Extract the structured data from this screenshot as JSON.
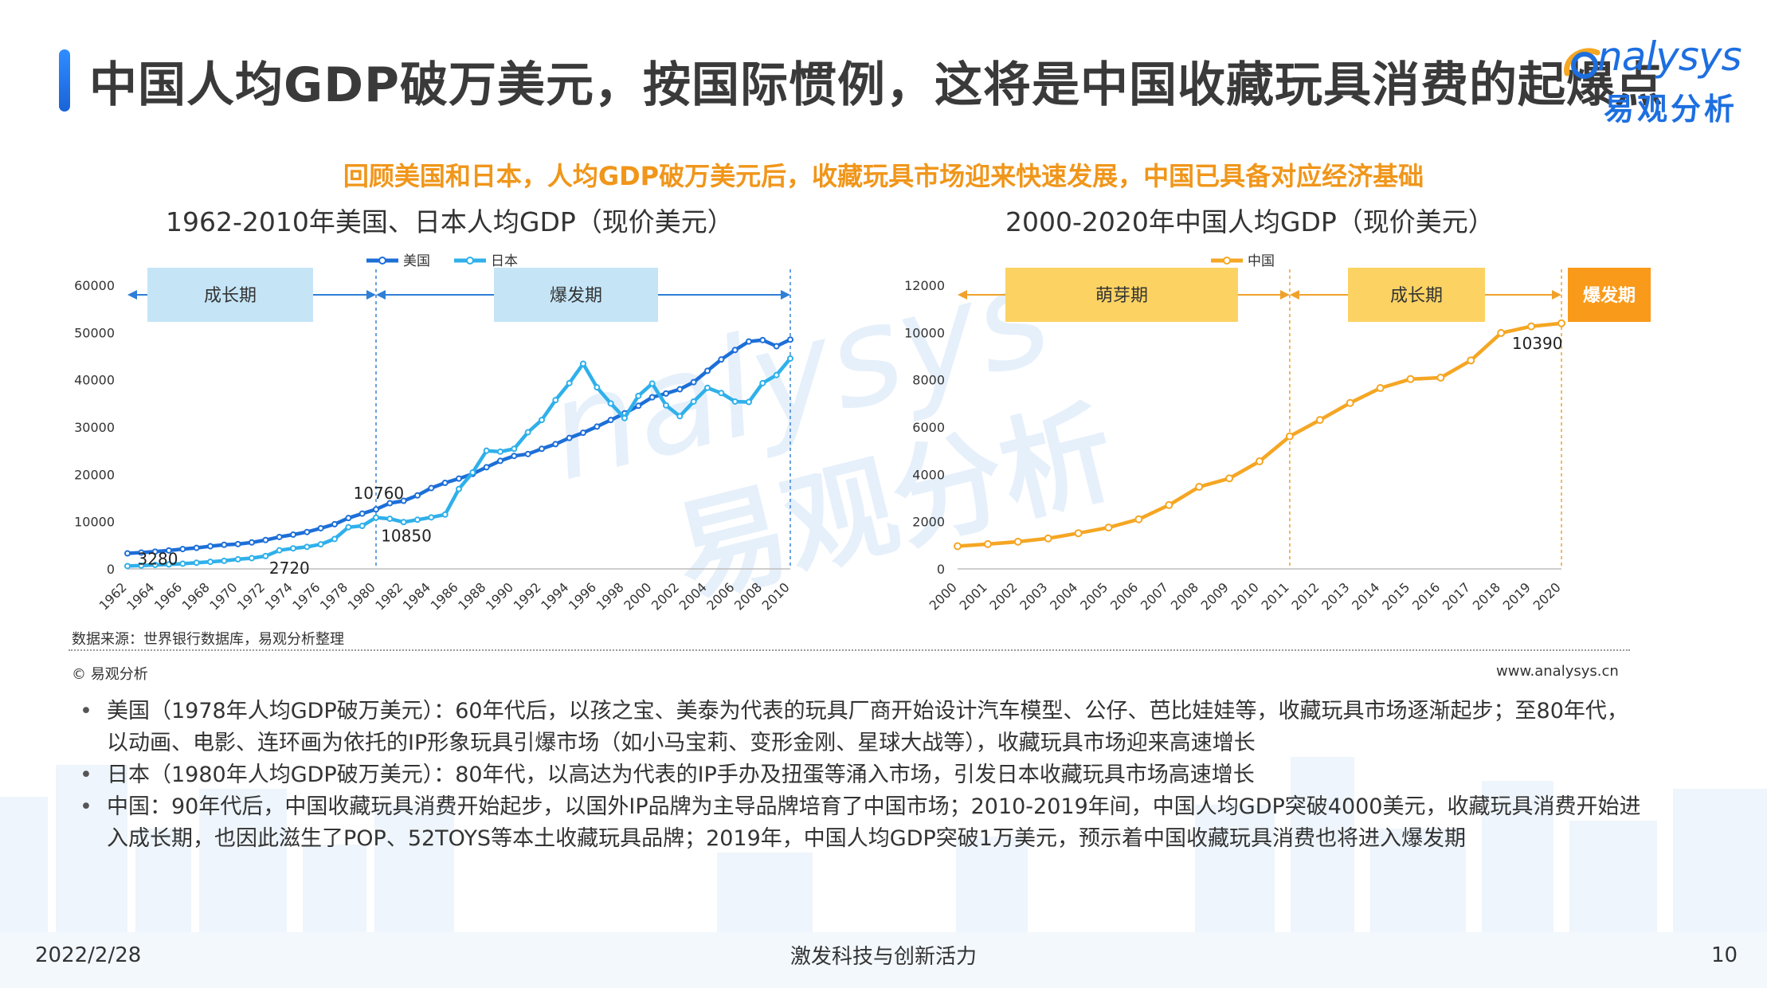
{
  "header": {
    "title": "中国人均GDP破万美元，按国际惯例，这将是中国收藏玩具消费的起爆点",
    "subtitle": "回顾美国和日本，人均GDP破万美元后，收藏玩具市场迎来快速发展，中国已具备对应经济基础"
  },
  "logo": {
    "text_en": "nalysys",
    "text_cn": "易观分析"
  },
  "watermark": {
    "text_en": "nalysys",
    "text_cn": "易观分析"
  },
  "colors": {
    "us": "#1d6fd8",
    "japan": "#2fb0ea",
    "china": "#f5a623",
    "phase_blue": "#c5e5f7",
    "phase_yellow": "#fcd363",
    "phase_orange": "#f99a1a",
    "accent": "#f0961a",
    "brand": "#1d6fe0"
  },
  "chart_data": [
    {
      "type": "line",
      "title": "1962-2010年美国、日本人均GDP（现价美元）",
      "x": [
        1962,
        1963,
        1964,
        1965,
        1966,
        1967,
        1968,
        1969,
        1970,
        1971,
        1972,
        1973,
        1974,
        1975,
        1976,
        1977,
        1978,
        1979,
        1980,
        1981,
        1982,
        1983,
        1984,
        1985,
        1986,
        1987,
        1988,
        1989,
        1990,
        1991,
        1992,
        1993,
        1994,
        1995,
        1996,
        1997,
        1998,
        1999,
        2000,
        2001,
        2002,
        2003,
        2004,
        2005,
        2006,
        2007,
        2008,
        2009,
        2010
      ],
      "xticks": [
        "1962",
        "1964",
        "1966",
        "1968",
        "1970",
        "1972",
        "1974",
        "1976",
        "1978",
        "1980",
        "1982",
        "1984",
        "1986",
        "1988",
        "1990",
        "1992",
        "1994",
        "1996",
        "1998",
        "2000",
        "2002",
        "2004",
        "2006",
        "2008",
        "2010"
      ],
      "ylim": [
        0,
        60000
      ],
      "yticks": [
        "0",
        "10000",
        "20000",
        "30000",
        "40000",
        "50000",
        "60000"
      ],
      "legend_position": "top",
      "series": [
        {
          "name": "美国",
          "color": "#1d6fd8",
          "values": [
            3280,
            3450,
            3650,
            3900,
            4200,
            4450,
            4800,
            5100,
            5250,
            5600,
            6100,
            6750,
            7250,
            7800,
            8600,
            9450,
            10760,
            11700,
            12600,
            13900,
            14400,
            15550,
            17100,
            18200,
            19100,
            20100,
            21500,
            22850,
            23900,
            24300,
            25400,
            26400,
            27700,
            28800,
            30100,
            31500,
            32900,
            34500,
            36300,
            37100,
            38000,
            39500,
            41900,
            44300,
            46300,
            48100,
            48400,
            47100,
            48500
          ]
        },
        {
          "name": "日本",
          "color": "#2fb0ea",
          "values": [
            600,
            700,
            850,
            950,
            1100,
            1300,
            1500,
            1700,
            2040,
            2270,
            2720,
            3930,
            4350,
            4660,
            5200,
            6330,
            8820,
            9100,
            10850,
            10600,
            9900,
            10400,
            10900,
            11500,
            16900,
            20400,
            25000,
            24800,
            25400,
            28900,
            31500,
            35700,
            39300,
            43400,
            38400,
            35000,
            31900,
            36600,
            39200,
            34600,
            32300,
            35400,
            38300,
            37200,
            35400,
            35300,
            39300,
            41000,
            44500
          ]
        }
      ],
      "annotations": [
        {
          "label": "3280",
          "x": 1962,
          "y": 3280
        },
        {
          "label": "2720",
          "x": 1972,
          "y": 2720
        },
        {
          "label": "10760",
          "x": 1978,
          "y": 10760
        },
        {
          "label": "10850",
          "x": 1980,
          "y": 10850
        }
      ],
      "phases": [
        {
          "label": "成长期",
          "from": 1962,
          "to": 1980
        },
        {
          "label": "爆发期",
          "from": 1980,
          "to": 2010
        }
      ]
    },
    {
      "type": "line",
      "title": "2000-2020年中国人均GDP（现价美元）",
      "x": [
        2000,
        2001,
        2002,
        2003,
        2004,
        2005,
        2006,
        2007,
        2008,
        2009,
        2010,
        2011,
        2012,
        2013,
        2014,
        2015,
        2016,
        2017,
        2018,
        2019,
        2020
      ],
      "xticks": [
        "2000",
        "2001",
        "2002",
        "2003",
        "2004",
        "2005",
        "2006",
        "2007",
        "2008",
        "2009",
        "2010",
        "2011",
        "2012",
        "2013",
        "2014",
        "2015",
        "2016",
        "2017",
        "2018",
        "2019",
        "2020"
      ],
      "ylim": [
        0,
        12000
      ],
      "yticks": [
        "0",
        "2000",
        "4000",
        "6000",
        "8000",
        "10000",
        "12000"
      ],
      "legend_position": "top",
      "series": [
        {
          "name": "中国",
          "color": "#f5a623",
          "values": [
            960,
            1050,
            1150,
            1290,
            1510,
            1750,
            2100,
            2700,
            3470,
            3830,
            4550,
            5610,
            6300,
            7020,
            7650,
            8030,
            8090,
            8820,
            9980,
            10260,
            10390
          ]
        }
      ],
      "annotations": [
        {
          "label": "10390",
          "x": 2019.2,
          "y": 10390
        }
      ],
      "phases": [
        {
          "label": "萌芽期",
          "from": 2000,
          "to": 2011
        },
        {
          "label": "成长期",
          "from": 2011,
          "to": 2020
        },
        {
          "label": "爆发期",
          "from": 2020,
          "to": 2020
        }
      ]
    }
  ],
  "source": "数据来源：世界银行数据库，易观分析整理",
  "copyright": "© 易观分析",
  "website": "www.analysys.cn",
  "bullets": [
    "美国（1978年人均GDP破万美元）：60年代后，以孩之宝、美泰为代表的玩具厂商开始设计汽车模型、公仔、芭比娃娃等，收藏玩具市场逐渐起步；至80年代，以动画、电影、连环画为依托的IP形象玩具引爆市场（如小马宝莉、变形金刚、星球大战等），收藏玩具市场迎来高速增长",
    "日本（1980年人均GDP破万美元）：80年代，以高达为代表的IP手办及扭蛋等涌入市场，引发日本收藏玩具市场高速增长",
    "中国：90年代后，中国收藏玩具消费开始起步，以国外IP品牌为主导品牌培育了中国市场；2010-2019年间，中国人均GDP突破4000美元，收藏玩具消费开始进入成长期，也因此滋生了POP、52TOYS等本土收藏玩具品牌；2019年，中国人均GDP突破1万美元，预示着中国收藏玩具消费也将进入爆发期"
  ],
  "footer": {
    "date": "2022/2/28",
    "slogan": "激发科技与创新活力",
    "page": "10"
  }
}
